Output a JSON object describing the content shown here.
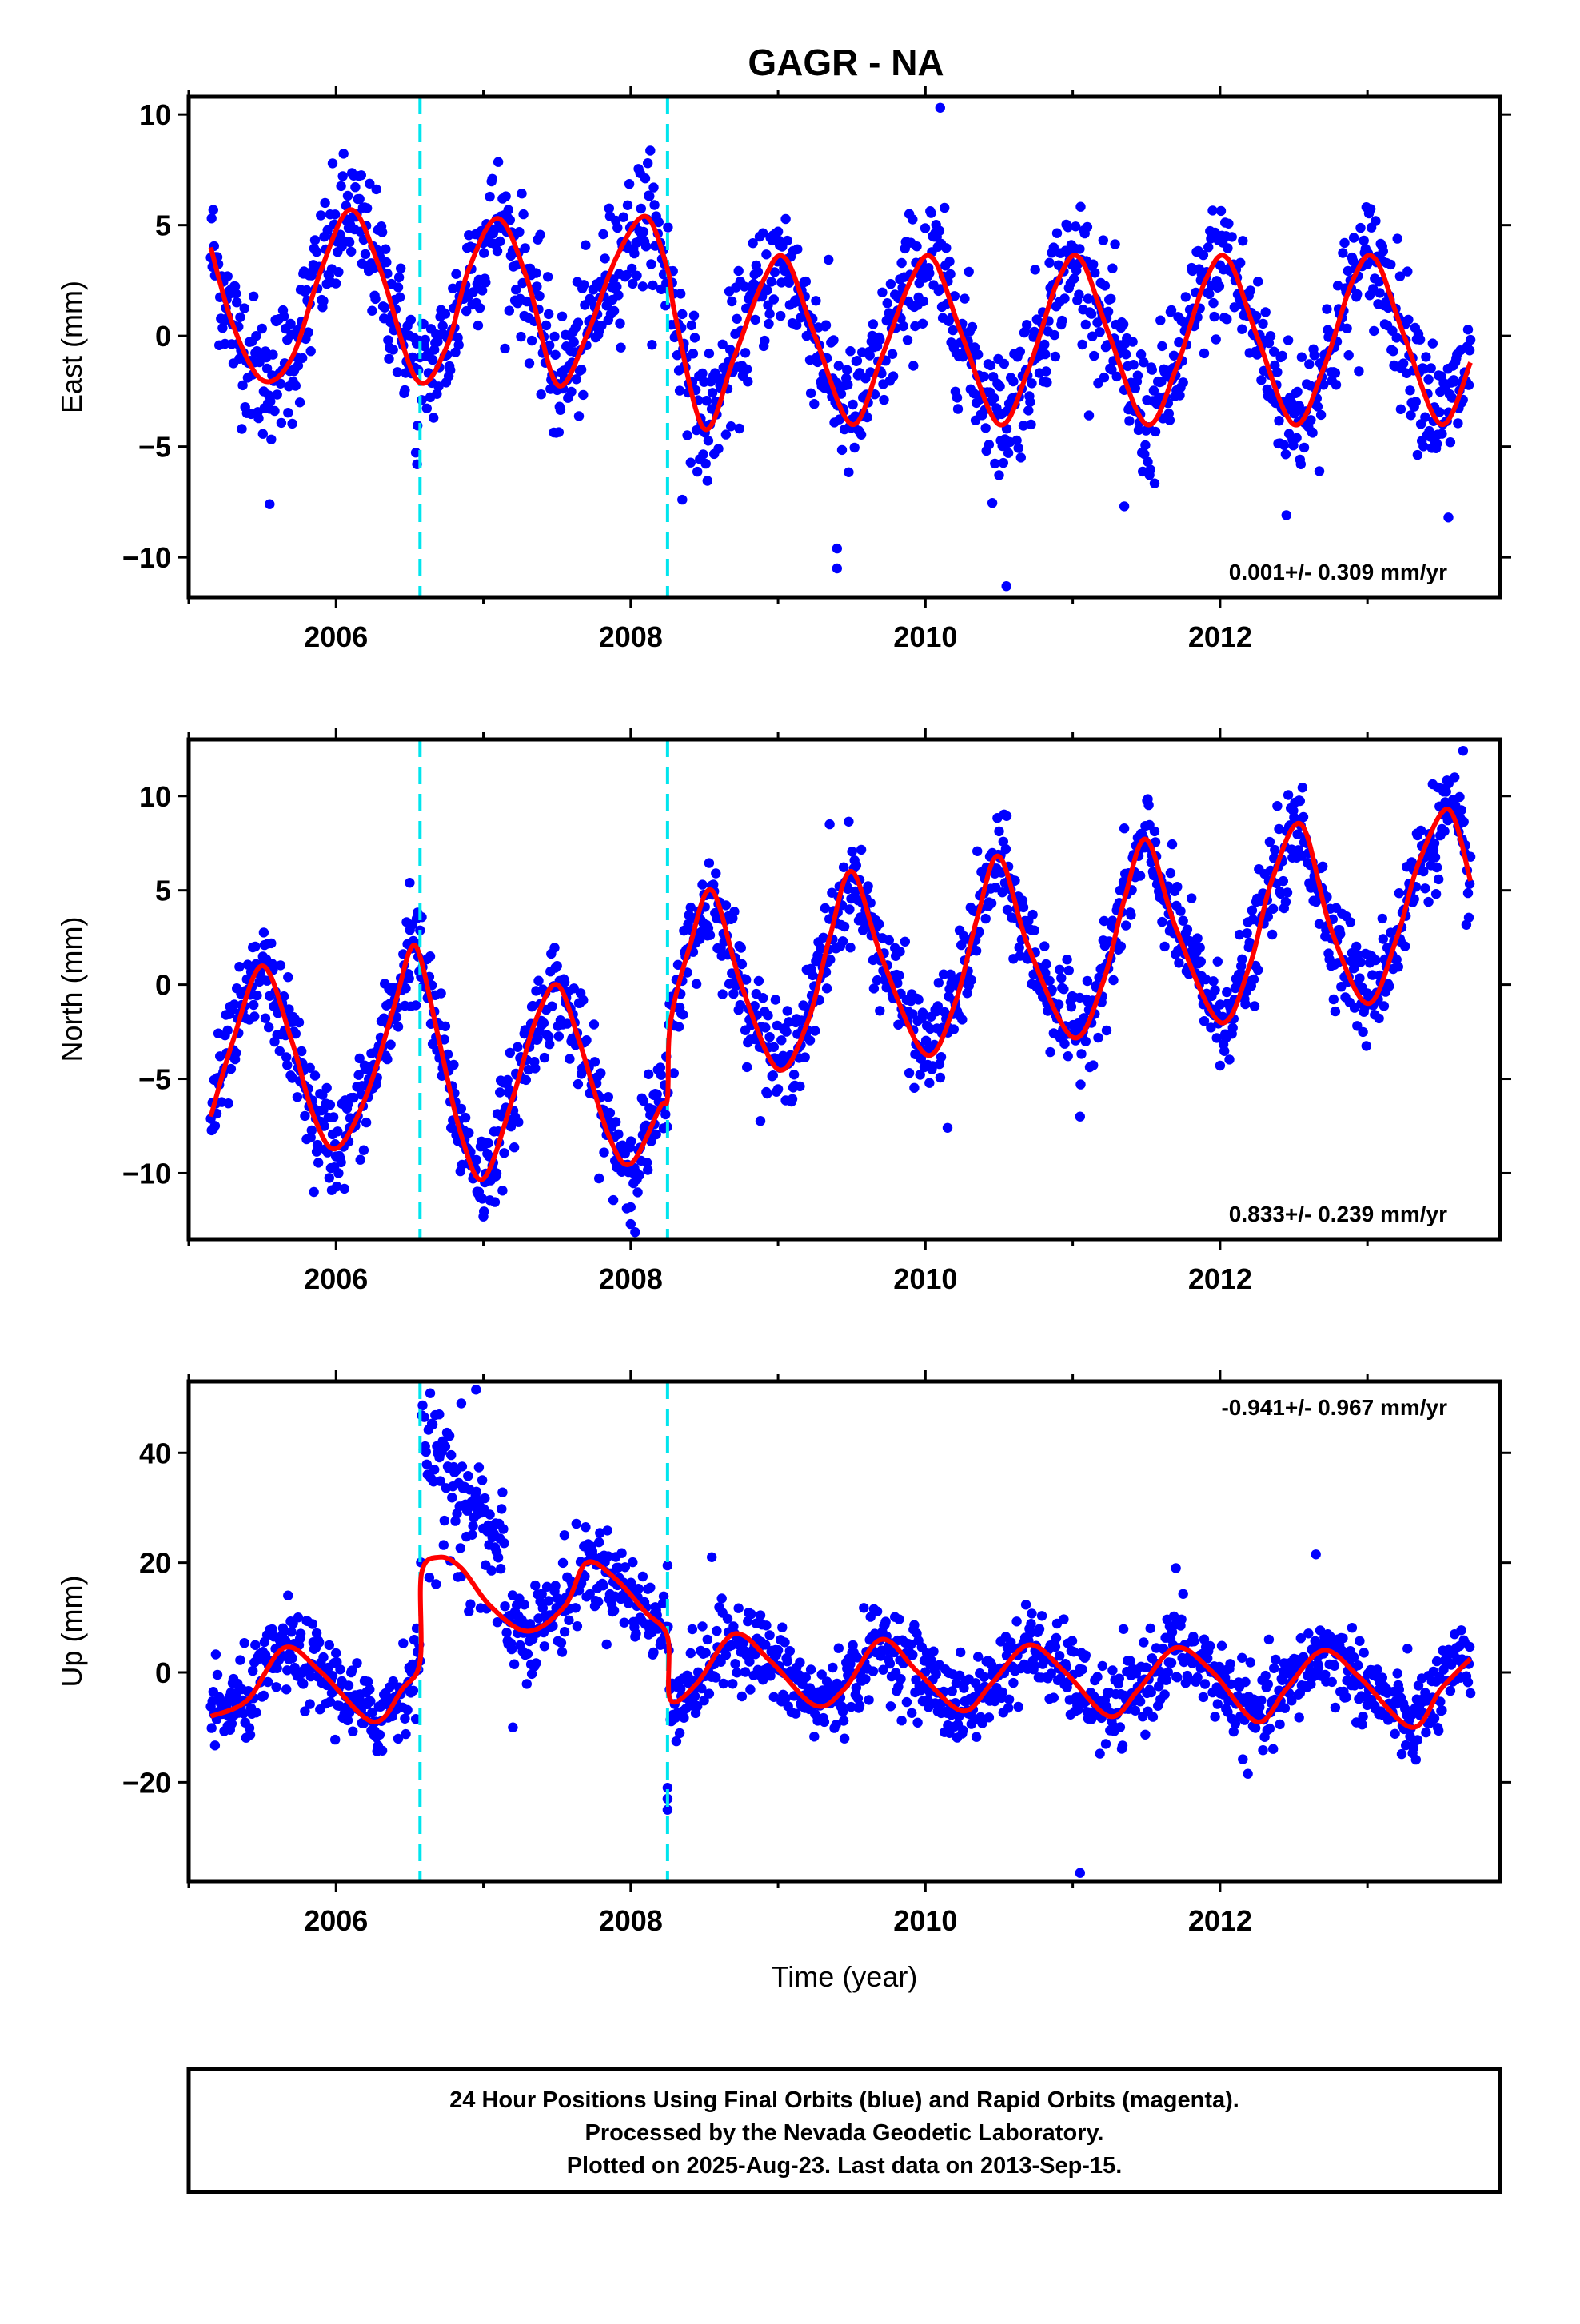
{
  "title": "GAGR - NA",
  "colors": {
    "points": "#0000ff",
    "model": "#ff0000",
    "offset_lines": "#00e5ee",
    "frame": "#000000"
  },
  "caption": {
    "lines": [
      "24 Hour Positions Using Final Orbits (blue) and Rapid Orbits (magenta).",
      "Processed by the Nevada Geodetic Laboratory.",
      "Plotted on 2025-Aug-23. Last data on 2013-Sep-15."
    ]
  },
  "chart_data": [
    {
      "type": "scatter",
      "name": "east",
      "ylabel": "East (mm)",
      "xlabel": "",
      "xlim": [
        2005.0,
        2013.9
      ],
      "ylim": [
        -11.8,
        10.8
      ],
      "xticks": [
        2006,
        2008,
        2010,
        2012
      ],
      "xtick_labels": [
        "2006",
        "2008",
        "2010",
        "2012"
      ],
      "yticks": [
        -10,
        -5,
        0,
        5,
        10
      ],
      "ytick_labels": [
        "−10",
        "−5",
        "0",
        "5",
        "10"
      ],
      "rate_label": "0.001+/- 0.309 mm/yr",
      "rate_position": "bottom-right",
      "data_span": [
        2005.15,
        2013.7
      ],
      "offsets": [
        2006.57,
        2008.25
      ],
      "model": [
        [
          2005.15,
          4.0
        ],
        [
          2005.3,
          0.5
        ],
        [
          2005.5,
          -2.0
        ],
        [
          2005.7,
          -1.0
        ],
        [
          2005.9,
          3.0
        ],
        [
          2006.1,
          5.7
        ],
        [
          2006.3,
          3.0
        ],
        [
          2006.55,
          -2.0
        ],
        [
          2006.75,
          -0.5
        ],
        [
          2006.9,
          3.0
        ],
        [
          2007.1,
          5.3
        ],
        [
          2007.3,
          2.5
        ],
        [
          2007.5,
          -2.2
        ],
        [
          2007.7,
          0.0
        ],
        [
          2007.9,
          3.5
        ],
        [
          2008.1,
          5.4
        ],
        [
          2008.25,
          3.0
        ],
        [
          2008.3,
          1.0
        ],
        [
          2008.5,
          -4.2
        ],
        [
          2008.7,
          -1.0
        ],
        [
          2008.9,
          2.5
        ],
        [
          2009.05,
          3.5
        ],
        [
          2009.25,
          0.0
        ],
        [
          2009.5,
          -4.0
        ],
        [
          2009.7,
          -1.0
        ],
        [
          2009.9,
          2.5
        ],
        [
          2010.05,
          3.5
        ],
        [
          2010.25,
          0.0
        ],
        [
          2010.5,
          -4.0
        ],
        [
          2010.7,
          -1.5
        ],
        [
          2010.9,
          2.5
        ],
        [
          2011.05,
          3.5
        ],
        [
          2011.25,
          0.0
        ],
        [
          2011.5,
          -4.0
        ],
        [
          2011.7,
          -1.5
        ],
        [
          2011.9,
          2.5
        ],
        [
          2012.05,
          3.5
        ],
        [
          2012.25,
          0.0
        ],
        [
          2012.5,
          -4.0
        ],
        [
          2012.7,
          -1.5
        ],
        [
          2012.9,
          2.5
        ],
        [
          2013.05,
          3.5
        ],
        [
          2013.25,
          0.0
        ],
        [
          2013.5,
          -4.0
        ],
        [
          2013.7,
          -1.2
        ]
      ],
      "scatter_sd": 1.5,
      "outliers": [
        [
          2005.55,
          -7.6
        ],
        [
          2009.4,
          -10.5
        ],
        [
          2009.4,
          -9.6
        ],
        [
          2010.1,
          10.3
        ],
        [
          2010.55,
          -11.3
        ],
        [
          2013.55,
          -8.2
        ],
        [
          2006.55,
          -5.8
        ],
        [
          2011.35,
          -7.7
        ],
        [
          2012.45,
          -8.1
        ],
        [
          2008.35,
          -7.4
        ]
      ]
    },
    {
      "type": "scatter",
      "name": "north",
      "ylabel": "North (mm)",
      "xlabel": "",
      "xlim": [
        2005.0,
        2013.9
      ],
      "ylim": [
        -13.5,
        13.0
      ],
      "xticks": [
        2006,
        2008,
        2010,
        2012
      ],
      "xtick_labels": [
        "2006",
        "2008",
        "2010",
        "2012"
      ],
      "yticks": [
        -10,
        -5,
        0,
        5,
        10
      ],
      "ytick_labels": [
        "−10",
        "−5",
        "0",
        "5",
        "10"
      ],
      "rate_label": "0.833+/- 0.239 mm/yr",
      "rate_position": "bottom-right",
      "data_span": [
        2005.15,
        2013.7
      ],
      "offsets": [
        2006.57,
        2008.25
      ],
      "model": [
        [
          2005.15,
          -7.0
        ],
        [
          2005.3,
          -3.0
        ],
        [
          2005.5,
          1.0
        ],
        [
          2005.7,
          -3.0
        ],
        [
          2005.85,
          -7.0
        ],
        [
          2006.0,
          -8.7
        ],
        [
          2006.2,
          -6.0
        ],
        [
          2006.4,
          -1.0
        ],
        [
          2006.5,
          1.8
        ],
        [
          2006.57,
          1.5
        ],
        [
          2006.7,
          -3.0
        ],
        [
          2006.85,
          -8.0
        ],
        [
          2007.0,
          -10.3
        ],
        [
          2007.2,
          -6.0
        ],
        [
          2007.35,
          -2.0
        ],
        [
          2007.5,
          0.0
        ],
        [
          2007.65,
          -3.0
        ],
        [
          2007.85,
          -8.0
        ],
        [
          2008.0,
          -9.5
        ],
        [
          2008.2,
          -6.5
        ],
        [
          2008.25,
          -6.0
        ],
        [
          2008.27,
          -2.0
        ],
        [
          2008.4,
          2.0
        ],
        [
          2008.55,
          5.0
        ],
        [
          2008.75,
          0.0
        ],
        [
          2009.0,
          -4.5
        ],
        [
          2009.2,
          -2.0
        ],
        [
          2009.35,
          2.5
        ],
        [
          2009.5,
          6.0
        ],
        [
          2009.7,
          1.5
        ],
        [
          2010.0,
          -3.7
        ],
        [
          2010.2,
          -1.0
        ],
        [
          2010.35,
          3.5
        ],
        [
          2010.5,
          6.8
        ],
        [
          2010.7,
          2.0
        ],
        [
          2011.0,
          -2.8
        ],
        [
          2011.2,
          0.0
        ],
        [
          2011.35,
          4.5
        ],
        [
          2011.5,
          7.7
        ],
        [
          2011.7,
          3.0
        ],
        [
          2012.0,
          -2.0
        ],
        [
          2012.2,
          1.0
        ],
        [
          2012.35,
          5.5
        ],
        [
          2012.55,
          8.5
        ],
        [
          2012.75,
          3.0
        ],
        [
          2013.0,
          -1.0
        ],
        [
          2013.2,
          2.5
        ],
        [
          2013.35,
          6.5
        ],
        [
          2013.55,
          9.3
        ],
        [
          2013.7,
          5.5
        ]
      ],
      "scatter_sd": 1.3,
      "outliers": [
        [
          2005.85,
          -11.0
        ],
        [
          2007.0,
          -12.3
        ],
        [
          2008.0,
          -12.7
        ],
        [
          2008.0,
          -11.8
        ],
        [
          2010.15,
          -7.6
        ],
        [
          2011.05,
          -7.0
        ],
        [
          2006.5,
          5.4
        ],
        [
          2013.65,
          12.4
        ],
        [
          2012.0,
          -4.3
        ],
        [
          2009.35,
          8.5
        ]
      ]
    },
    {
      "type": "scatter",
      "name": "up",
      "ylabel": "Up (mm)",
      "xlabel": "Time (year)",
      "xlim": [
        2005.0,
        2013.9
      ],
      "ylim": [
        -38.0,
        53.0
      ],
      "xticks": [
        2006,
        2008,
        2010,
        2012
      ],
      "xtick_labels": [
        "2006",
        "2008",
        "2010",
        "2012"
      ],
      "yticks": [
        -20,
        0,
        20,
        40
      ],
      "ytick_labels": [
        "−20",
        "0",
        "20",
        "40"
      ],
      "rate_label": "-0.941+/- 0.967 mm/yr",
      "rate_position": "top-right",
      "data_span": [
        2005.15,
        2013.7
      ],
      "offsets": [
        2006.57,
        2008.25
      ],
      "model": [
        [
          2005.15,
          -8.0
        ],
        [
          2005.4,
          -5.0
        ],
        [
          2005.65,
          4.5
        ],
        [
          2005.9,
          0.0
        ],
        [
          2006.25,
          -9.0
        ],
        [
          2006.45,
          -3.0
        ],
        [
          2006.57,
          2.0
        ],
        [
          2006.58,
          18.0
        ],
        [
          2006.7,
          21.0
        ],
        [
          2006.85,
          19.0
        ],
        [
          2007.05,
          12.0
        ],
        [
          2007.3,
          7.5
        ],
        [
          2007.55,
          12.0
        ],
        [
          2007.7,
          20.0
        ],
        [
          2007.9,
          17.0
        ],
        [
          2008.1,
          11.0
        ],
        [
          2008.25,
          6.5
        ],
        [
          2008.27,
          -5.0
        ],
        [
          2008.45,
          -2.0
        ],
        [
          2008.7,
          7.0
        ],
        [
          2008.95,
          2.0
        ],
        [
          2009.25,
          -6.0
        ],
        [
          2009.45,
          -3.0
        ],
        [
          2009.7,
          6.0
        ],
        [
          2009.95,
          0.0
        ],
        [
          2010.25,
          -7.0
        ],
        [
          2010.45,
          -2.0
        ],
        [
          2010.7,
          5.0
        ],
        [
          2010.95,
          0.0
        ],
        [
          2011.25,
          -8.0
        ],
        [
          2011.45,
          -3.0
        ],
        [
          2011.7,
          4.5
        ],
        [
          2011.95,
          0.0
        ],
        [
          2012.25,
          -9.0
        ],
        [
          2012.45,
          -3.0
        ],
        [
          2012.7,
          4.0
        ],
        [
          2012.95,
          -1.0
        ],
        [
          2013.3,
          -10.0
        ],
        [
          2013.5,
          -3.0
        ],
        [
          2013.7,
          2.5
        ]
      ],
      "scatter_sd": 3.8,
      "transient": {
        "x_range": [
          2006.58,
          2007.15
        ],
        "start": 43.0,
        "end": 22.0,
        "sd": 4.0
      },
      "outliers": [
        [
          2006.95,
          51.5
        ],
        [
          2006.85,
          49.0
        ],
        [
          2006.7,
          47.0
        ],
        [
          2008.25,
          19.5
        ],
        [
          2008.25,
          -21.0
        ],
        [
          2008.25,
          -25.0
        ],
        [
          2008.25,
          -23.0
        ],
        [
          2011.05,
          -36.5
        ],
        [
          2007.2,
          -10.0
        ],
        [
          2012.65,
          21.5
        ],
        [
          2008.55,
          21.0
        ],
        [
          2007.55,
          25.0
        ],
        [
          2011.7,
          19.0
        ]
      ]
    }
  ]
}
